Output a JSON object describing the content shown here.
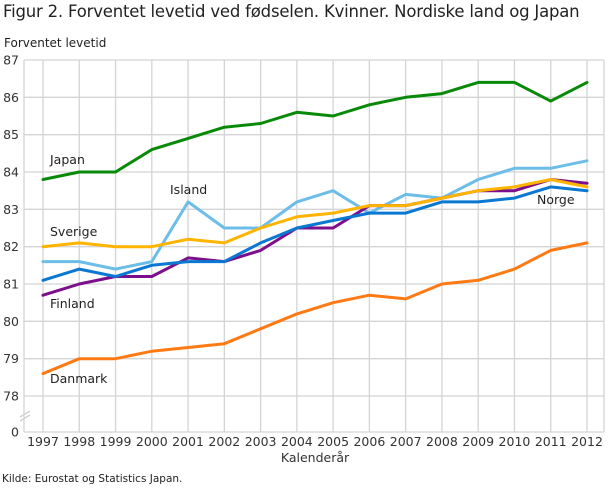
{
  "chart_data": {
    "type": "line",
    "title": "Figur 2. Forventet levetid ved fødselen. Kvinner. Nordiske land og Japan",
    "ylabel": "Forventet levetid",
    "xlabel": "Kalenderår",
    "source": "Kilde: Eurostat og Statistics Japan.",
    "ylim": [
      78,
      87
    ],
    "y_axis_break": true,
    "yticks": [
      "87",
      "86",
      "85",
      "84",
      "83",
      "82",
      "81",
      "80",
      "79",
      "78",
      "0"
    ],
    "grid": true,
    "legend": "inline labels",
    "x": [
      "1997",
      "1998",
      "1999",
      "2000",
      "2001",
      "2002",
      "2003",
      "2004",
      "2005",
      "2006",
      "2007",
      "2008",
      "2009",
      "2010",
      "2011",
      "2012"
    ],
    "series": [
      {
        "name": "Japan",
        "color": "#088a08",
        "values": [
          83.8,
          84.0,
          84.0,
          84.6,
          84.9,
          85.2,
          85.3,
          85.6,
          85.5,
          85.8,
          86.0,
          86.1,
          86.4,
          86.4,
          85.9,
          86.4
        ]
      },
      {
        "name": "Island",
        "color": "#6cbde8",
        "values": [
          81.6,
          81.6,
          81.4,
          81.6,
          83.2,
          82.5,
          82.5,
          83.2,
          83.5,
          82.9,
          83.4,
          83.3,
          83.8,
          84.1,
          84.1,
          84.3
        ]
      },
      {
        "name": "Sverige",
        "color": "#ffb400",
        "values": [
          82.0,
          82.1,
          82.0,
          82.0,
          82.2,
          82.1,
          82.5,
          82.8,
          82.9,
          83.1,
          83.1,
          83.3,
          83.5,
          83.6,
          83.8,
          83.6
        ]
      },
      {
        "name": "Finland",
        "color": "#7d0f8c",
        "values": [
          80.7,
          81.0,
          81.2,
          81.2,
          81.7,
          81.6,
          81.9,
          82.5,
          82.5,
          83.1,
          83.1,
          83.3,
          83.5,
          83.5,
          83.8,
          83.7
        ]
      },
      {
        "name": "Norge",
        "color": "#0a78d2",
        "values": [
          81.1,
          81.4,
          81.2,
          81.5,
          81.6,
          81.6,
          82.1,
          82.5,
          82.7,
          82.9,
          82.9,
          83.2,
          83.2,
          83.3,
          83.6,
          83.5
        ]
      },
      {
        "name": "Danmark",
        "color": "#ff7a14",
        "values": [
          78.6,
          79.0,
          79.0,
          79.2,
          79.3,
          79.4,
          79.8,
          80.2,
          80.5,
          80.7,
          80.6,
          81.0,
          81.1,
          81.4,
          81.9,
          82.1
        ]
      }
    ]
  }
}
